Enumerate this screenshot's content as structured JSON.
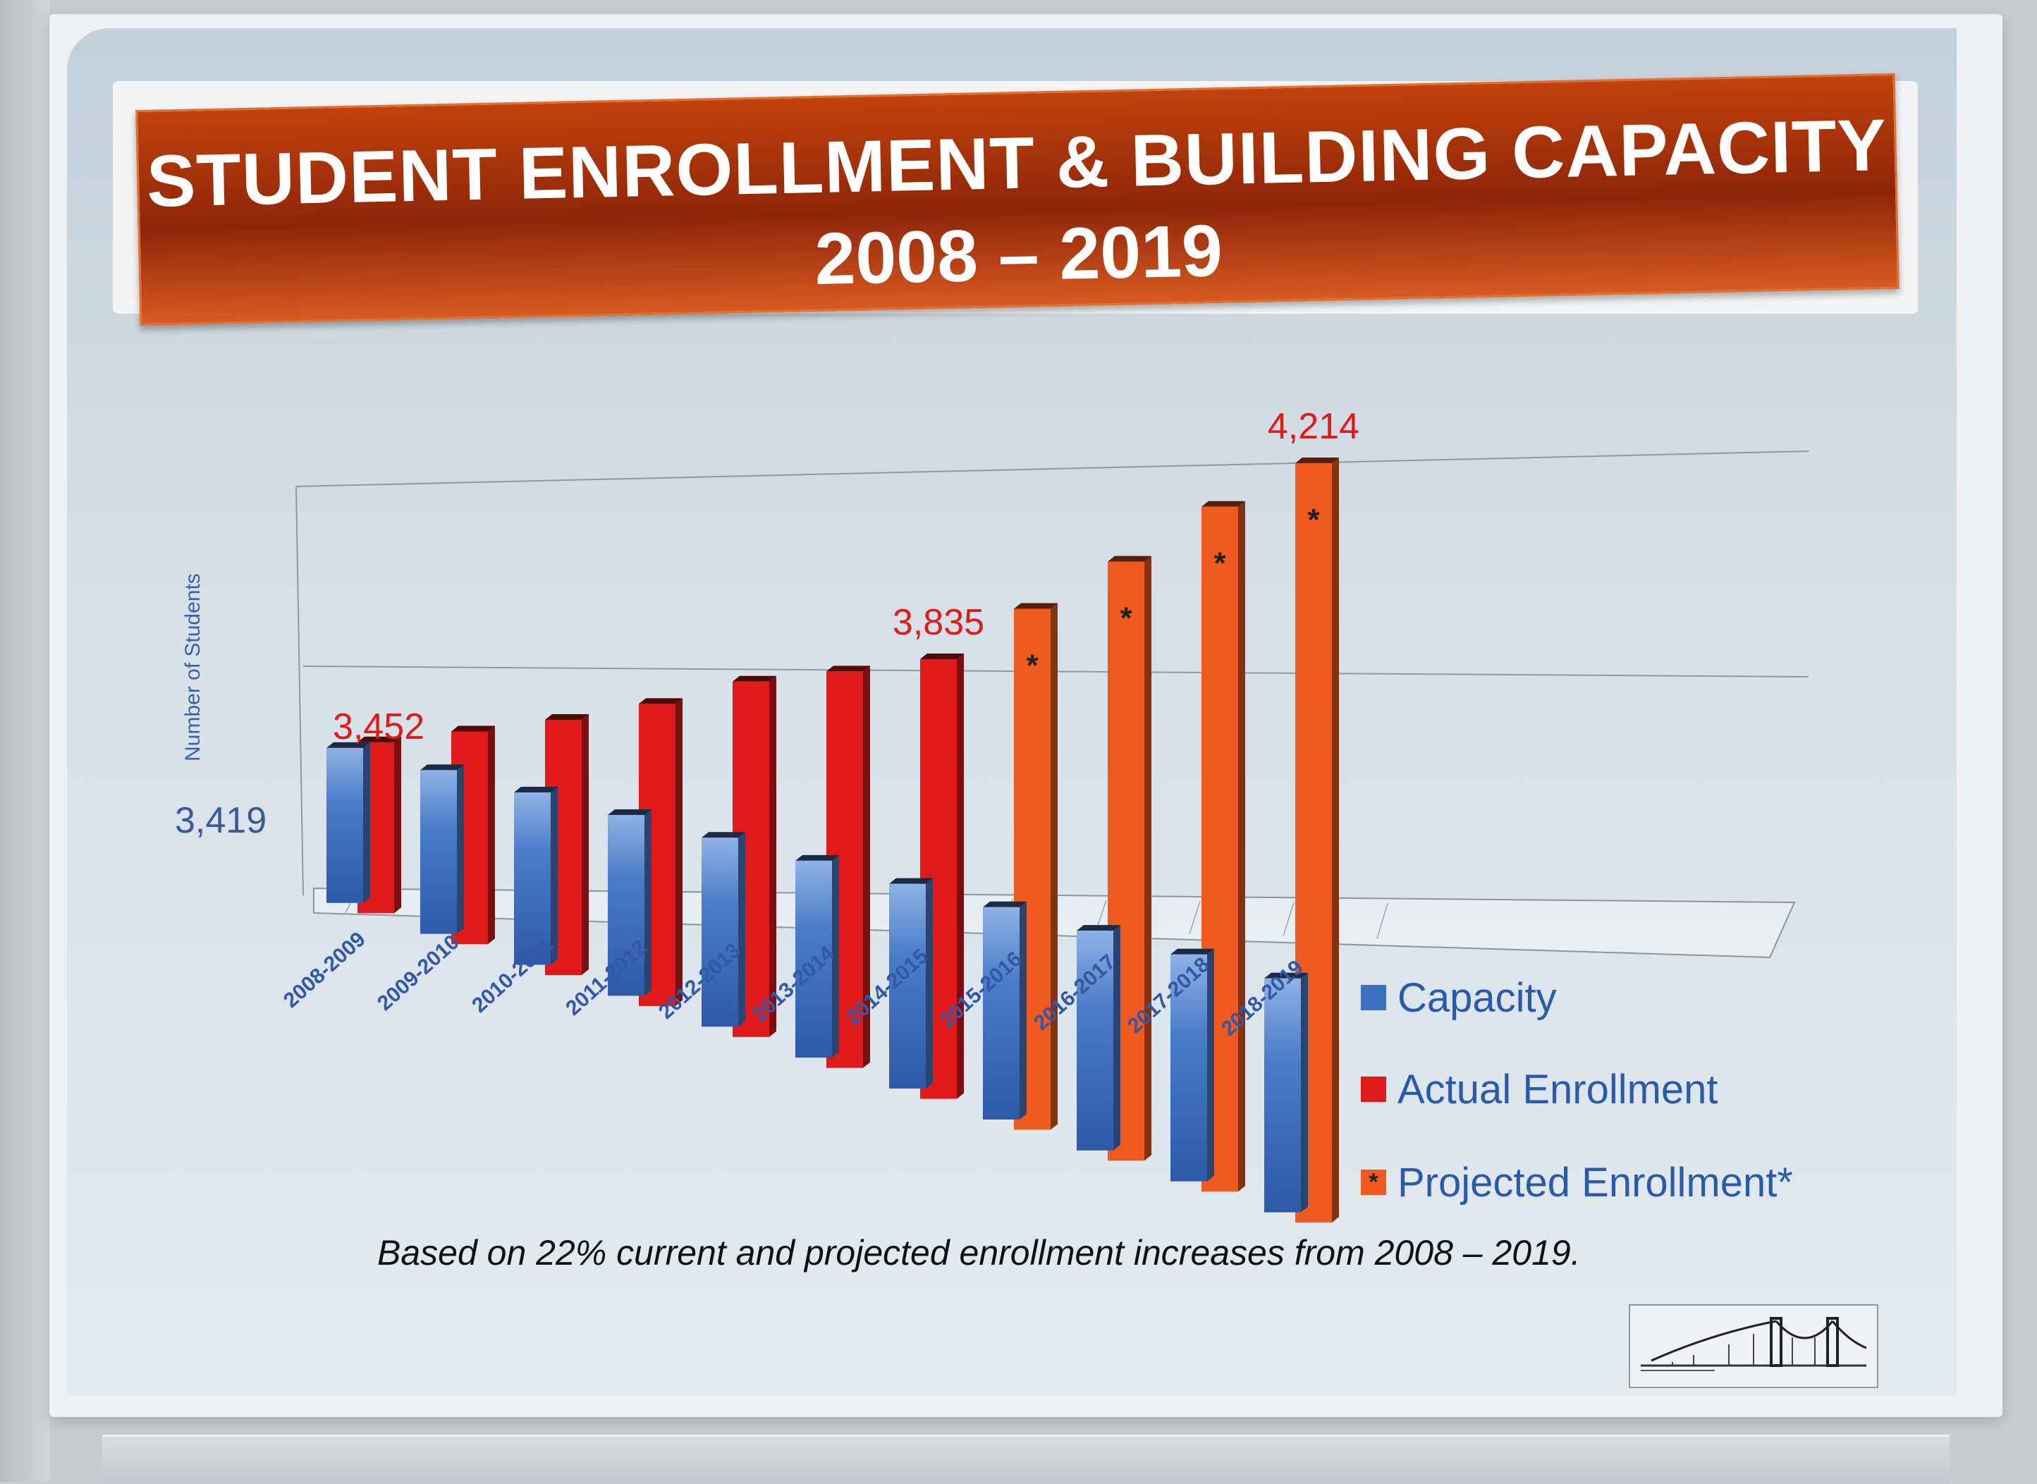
{
  "slide": {
    "title_line1": "STUDENT ENROLLMENT & BUILDING CAPACITY",
    "title_line2": "2008 – 2019",
    "footnote": "Based on 22% current and projected enrollment increases from 2008 – 2019."
  },
  "chart_data": {
    "type": "bar",
    "ylabel": "Number of Students",
    "categories": [
      "2008-2009",
      "2009-2010",
      "2010-2011",
      "2011-2012",
      "2012-2013",
      "2013-2014",
      "2014-2015",
      "2015-2016",
      "2016-2017",
      "2017-2018",
      "2018-2019"
    ],
    "series": [
      {
        "name": "Capacity",
        "color": "#4a7cc8",
        "values": [
          3419,
          3415,
          3411,
          3407,
          3403,
          3399,
          3395,
          3391,
          3387,
          3383,
          3379
        ]
      },
      {
        "name": "Actual Enrollment",
        "color": "#e01a1a",
        "values": [
          3452,
          3528,
          3597,
          3668,
          3745,
          3790,
          3835,
          null,
          null,
          null,
          null
        ]
      },
      {
        "name": "Projected Enrollment*",
        "color": "#f05a1e",
        "marker": "*",
        "values": [
          null,
          null,
          null,
          null,
          null,
          null,
          null,
          3945,
          4040,
          4140,
          4214
        ]
      }
    ],
    "data_labels": [
      {
        "series": "Capacity",
        "category": "2008-2009",
        "text": "3,419"
      },
      {
        "series": "Actual Enrollment",
        "category": "2008-2009",
        "text": "3,452"
      },
      {
        "series": "Actual Enrollment",
        "category": "2014-2015",
        "text": "3,835"
      },
      {
        "series": "Projected Enrollment*",
        "category": "2018-2019",
        "text": "4,214"
      }
    ],
    "ylim": [
      3000,
      4250
    ],
    "grid": true,
    "legend": "right"
  },
  "legend": {
    "items": [
      {
        "label": "Capacity",
        "color": "#3f6fc0",
        "marker": ""
      },
      {
        "label": "Actual Enrollment",
        "color": "#e01a1a",
        "marker": ""
      },
      {
        "label": "Projected Enrollment*",
        "color": "#f05a1e",
        "marker": "*"
      }
    ]
  },
  "logo": {
    "icon": "bridge-icon"
  }
}
